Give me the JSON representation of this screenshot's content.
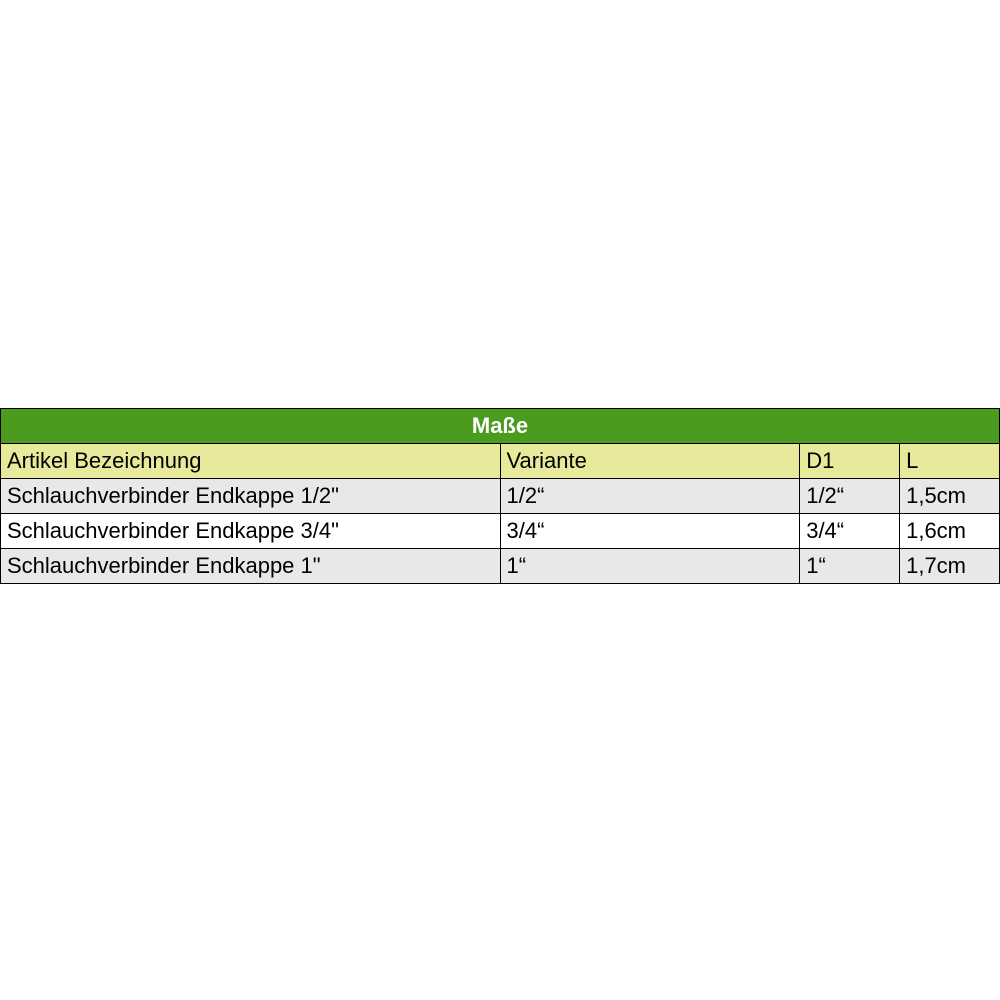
{
  "table": {
    "title": "Maße",
    "title_bg": "#4a9b1e",
    "title_color": "#ffffff",
    "header_bg": "#e8e99a",
    "header_color": "#000000",
    "row_odd_bg": "#e8e8e8",
    "row_even_bg": "#ffffff",
    "border_color": "#000000",
    "columns": [
      {
        "label": "Artikel Bezeichnung",
        "key": "artikel"
      },
      {
        "label": "Variante",
        "key": "variante"
      },
      {
        "label": "D1",
        "key": "d1"
      },
      {
        "label": "L",
        "key": "l"
      }
    ],
    "rows": [
      {
        "artikel": "Schlauchverbinder Endkappe 1/2\"",
        "variante": "1/2“",
        "d1": "1/2“",
        "l": "1,5cm"
      },
      {
        "artikel": "Schlauchverbinder Endkappe 3/4\"",
        "variante": "3/4“",
        "d1": "3/4“",
        "l": "1,6cm"
      },
      {
        "artikel": "Schlauchverbinder Endkappe 1\"",
        "variante": "1“",
        "d1": "1“",
        "l": "1,7cm"
      }
    ]
  }
}
